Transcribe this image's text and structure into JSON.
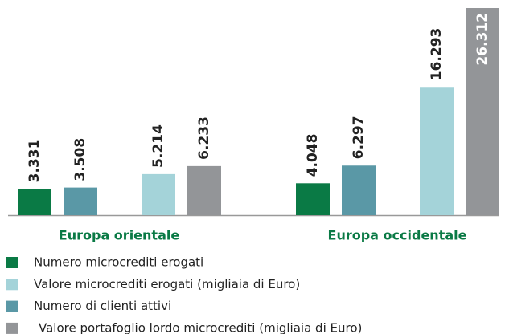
{
  "chart_data": {
    "type": "bar",
    "categories": [
      "Europa orientale",
      "Europa occidentale"
    ],
    "series": [
      {
        "name": "Numero microcrediti erogati",
        "color": "#0a7a45",
        "values": [
          3331,
          4048
        ],
        "value_labels": [
          "3.331",
          "4.048"
        ]
      },
      {
        "name": "Valore microcrediti erogati (migliaia di Euro)",
        "color": "#a4d3d9",
        "values": [
          5214,
          16293
        ],
        "value_labels": [
          "5.214",
          "16.293"
        ]
      },
      {
        "name": "Numero di clienti attivi",
        "color": "#5a98a6",
        "values": [
          3508,
          6297
        ],
        "value_labels": [
          "3.508",
          "6.297"
        ]
      },
      {
        "name": "Valore portafoglio lordo microcrediti (migliaia di Euro)",
        "color": "#939598",
        "values": [
          6233,
          26312
        ],
        "value_labels": [
          "6.233",
          "26.312"
        ]
      }
    ]
  }
}
